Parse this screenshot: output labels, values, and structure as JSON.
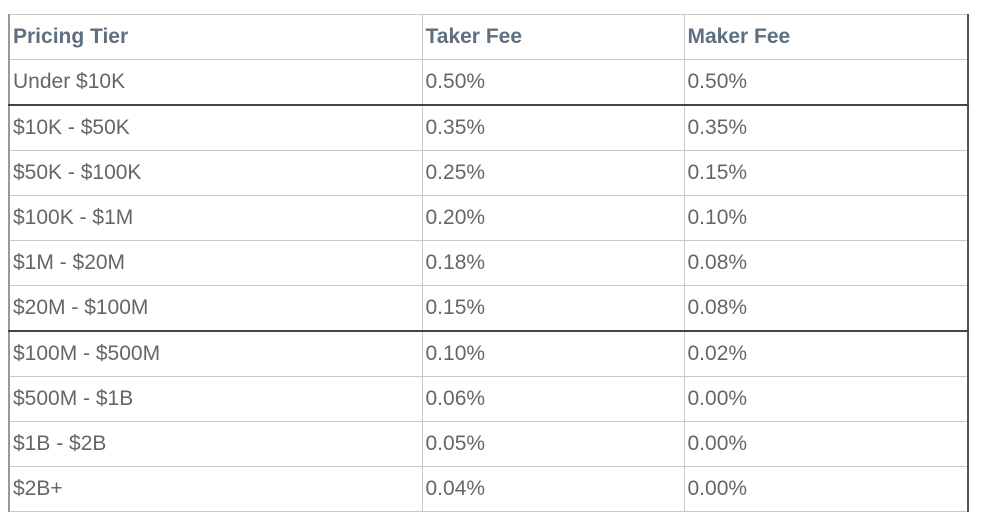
{
  "table": {
    "headers": [
      "Pricing Tier",
      "Taker Fee",
      "Maker Fee"
    ],
    "rows": [
      [
        "Under $10K",
        "0.50%",
        "0.50%"
      ],
      [
        "$10K - $50K",
        "0.35%",
        "0.35%"
      ],
      [
        "$50K - $100K",
        "0.25%",
        "0.15%"
      ],
      [
        "$100K - $1M",
        "0.20%",
        "0.10%"
      ],
      [
        "$1M - $20M",
        "0.18%",
        "0.08%"
      ],
      [
        "$20M - $100M",
        "0.15%",
        "0.08%"
      ],
      [
        "$100M - $500M",
        "0.10%",
        "0.02%"
      ],
      [
        "$500M - $1B",
        "0.06%",
        "0.00%"
      ],
      [
        "$1B - $2B",
        "0.05%",
        "0.00%"
      ],
      [
        "$2B+",
        "0.04%",
        "0.00%"
      ]
    ]
  },
  "colors": {
    "header_text": "#5f6f7f",
    "cell_text": "#666666",
    "grid": "#c9c9c9"
  }
}
